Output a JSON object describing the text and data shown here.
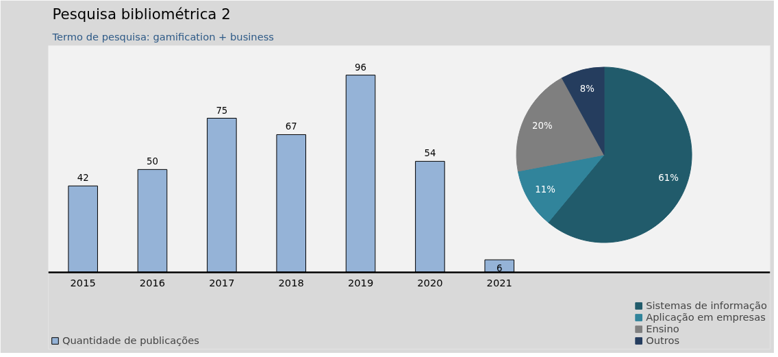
{
  "chart_data": [
    {
      "type": "bar",
      "title": "Pesquisa bibliométrica 2",
      "subtitle": "Termo de pesquisa: gamification + business",
      "categories": [
        "2015",
        "2016",
        "2017",
        "2018",
        "2019",
        "2020",
        "2021"
      ],
      "series": [
        {
          "name": "Quantidade de publicações",
          "color": "#95b3d7",
          "values": [
            42,
            50,
            75,
            67,
            96,
            54,
            6
          ]
        }
      ],
      "data_labels": true,
      "legend": "bottom left",
      "tick_labels": "x",
      "grid": false
    },
    {
      "type": "pie",
      "categories": [
        "Sistemas de informação",
        "Aplicação em empresas",
        "Ensino",
        "Outros"
      ],
      "values": [
        61,
        11,
        20,
        8
      ],
      "colors": [
        "#215b6b",
        "#31849b",
        "#7f7f7f",
        "#253d5e"
      ],
      "value_labels": [
        "61%",
        "11%",
        "20%",
        "8%"
      ],
      "legend": "bottom right"
    }
  ]
}
